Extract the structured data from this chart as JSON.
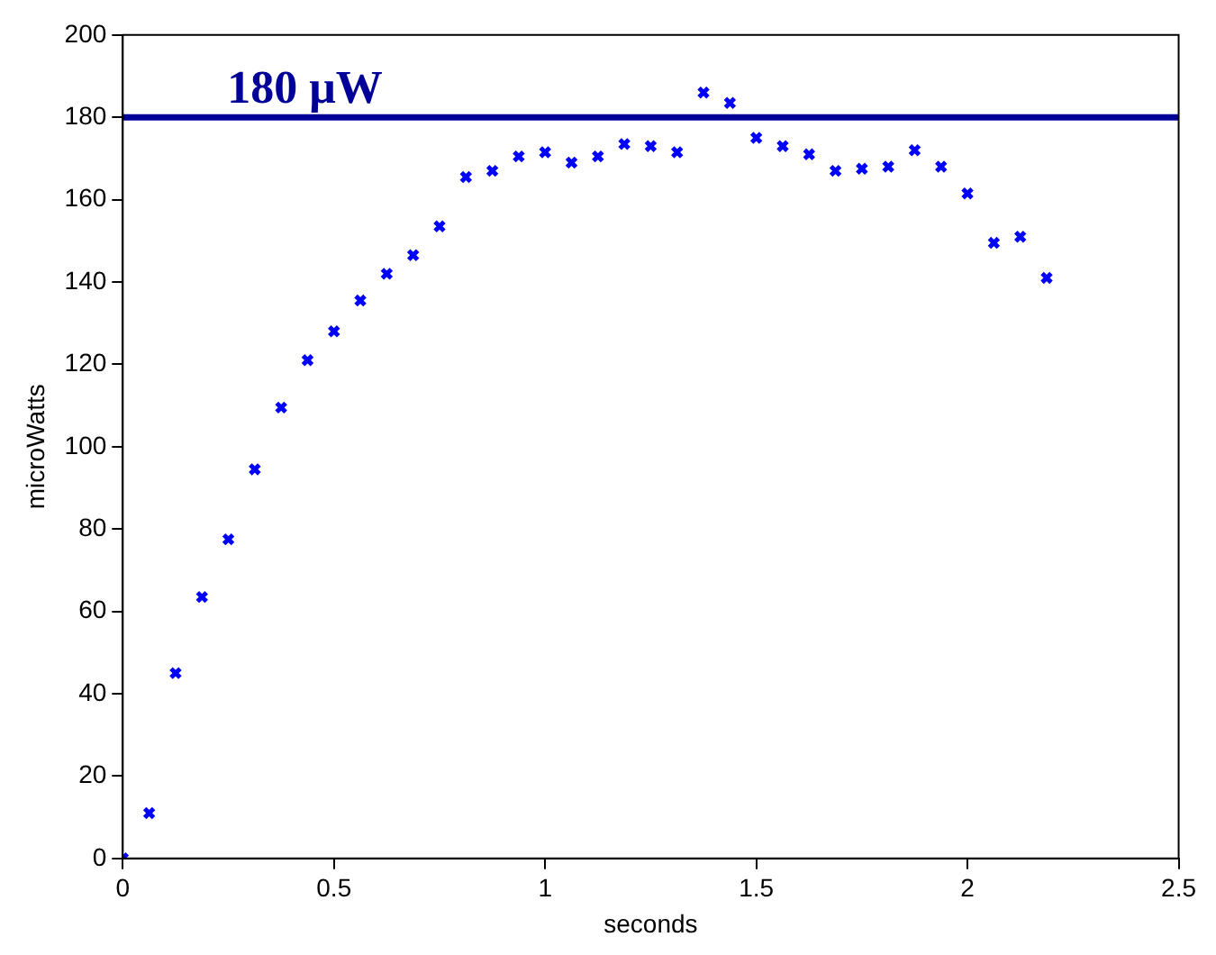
{
  "chart_data": {
    "type": "scatter",
    "xlabel": "seconds",
    "ylabel": "microWatts",
    "x": [
      0,
      0.0625,
      0.125,
      0.1875,
      0.25,
      0.3125,
      0.375,
      0.4375,
      0.5,
      0.5625,
      0.625,
      0.6875,
      0.75,
      0.8125,
      0.875,
      0.9375,
      1,
      1.0625,
      1.125,
      1.1875,
      1.25,
      1.3125,
      1.375,
      1.4375,
      1.5,
      1.5625,
      1.625,
      1.6875,
      1.75,
      1.8125,
      1.875,
      1.9375,
      2,
      2.0625,
      2.125,
      2.1875
    ],
    "series": [
      {
        "color": "#0000ff",
        "values": [
          0,
          11,
          45,
          63.5,
          77.5,
          94.5,
          109.5,
          121,
          128,
          135.5,
          142,
          146.5,
          153.5,
          165.5,
          167,
          170.5,
          171.5,
          169,
          170.5,
          173.5,
          173,
          171.5,
          186,
          183.5,
          175,
          173,
          171,
          167,
          167.5,
          168,
          172,
          168,
          161.5,
          149.5,
          151,
          141
        ]
      }
    ],
    "marker": "cross",
    "xlim": [
      0,
      2.5
    ],
    "xticks": [
      0,
      0.5,
      1,
      1.5,
      2,
      2.5
    ],
    "ylim": [
      0,
      200
    ],
    "yticks": [
      0,
      20,
      40,
      60,
      80,
      100,
      120,
      140,
      160,
      180,
      200
    ],
    "grid": false,
    "legend": false,
    "ref_lines": [
      {
        "axis": "y",
        "value": 180,
        "label": "180 μW",
        "color": "#000099"
      }
    ]
  }
}
